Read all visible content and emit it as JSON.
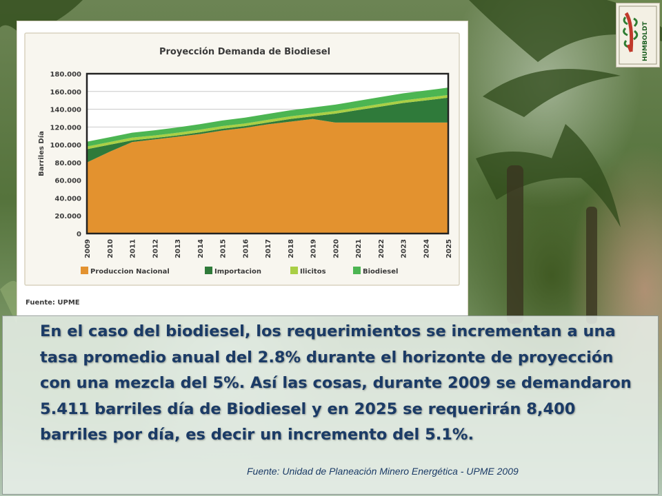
{
  "slide": {
    "body_text": "En el caso del biodiesel, los requerimientos se incrementan a una tasa promedio anual del 2.8% durante el horizonte de proyección con una mezcla del 5%. Así las cosas, durante 2009 se demandaron 5.411 barriles día de Biodiesel y en 2025 se requerirán 8,400 barriles por día, es decir un incremento del 5.1%.",
    "source": "Fuente: Unidad de Planeación Minero Energética - UPME 2009"
  },
  "logo": {
    "text": "HUMBOLDT",
    "icon": "humboldt-logo-icon"
  },
  "colors": {
    "produccion": "#e3922f",
    "importacion": "#2f7a3a",
    "ilicitos": "#a9cf45",
    "biodiesel": "#4cb552",
    "text": "#1b3b66"
  },
  "chart_data": {
    "type": "area",
    "stacked": true,
    "title": "Proyección Demanda de Biodiesel",
    "ylabel": "Barriles Día",
    "xlabel": "",
    "ylim": [
      0,
      180000
    ],
    "ytick_labels": [
      "0",
      "20.000",
      "40.000",
      "60.000",
      "80.000",
      "100.000",
      "120.000",
      "140.000",
      "160.000",
      "180.000"
    ],
    "x": [
      "2009",
      "2010",
      "2011",
      "2012",
      "2013",
      "2014",
      "2015",
      "2016",
      "2017",
      "2018",
      "2019",
      "2020",
      "2021",
      "2022",
      "2023",
      "2024",
      "2025"
    ],
    "series": [
      {
        "name": "Produccion Nacional",
        "color": "#e3922f",
        "values": [
          80000,
          92000,
          103000,
          106000,
          109000,
          112000,
          116000,
          119000,
          123000,
          126000,
          129000,
          125000,
          125000,
          125000,
          125000,
          125000,
          125000
        ]
      },
      {
        "name": "Importacion",
        "color": "#2f7a3a",
        "values": [
          15000,
          8000,
          2000,
          1500,
          1500,
          2000,
          2000,
          2000,
          2000,
          3000,
          3000,
          10000,
          14000,
          18000,
          22000,
          25000,
          28000
        ]
      },
      {
        "name": "Ilicitos",
        "color": "#a9cf45",
        "values": [
          3000,
          3000,
          3000,
          3000,
          3000,
          3000,
          3000,
          3000,
          3000,
          3000,
          3000,
          3000,
          3000,
          3000,
          3000,
          3000,
          3000
        ]
      },
      {
        "name": "Biodiesel",
        "color": "#4cb552",
        "values": [
          5400,
          5500,
          5600,
          5800,
          6000,
          6100,
          6300,
          6500,
          6700,
          6800,
          7000,
          7200,
          7400,
          7700,
          7900,
          8100,
          8400
        ]
      }
    ],
    "legend_position": "bottom",
    "source": "Fuente: UPME"
  }
}
